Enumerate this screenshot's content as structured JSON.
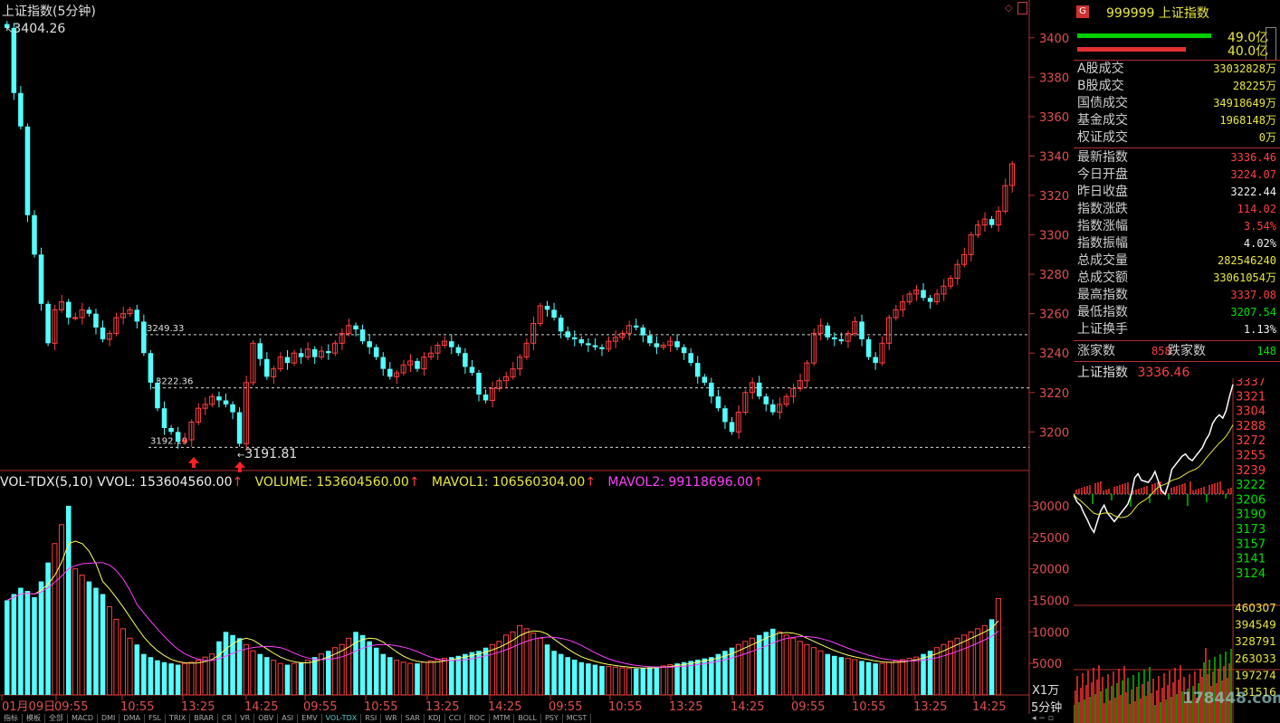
{
  "header": {
    "title": "上证指数(5分钟)",
    "right_icons": [
      "diamond-icon",
      "scroll-icon"
    ]
  },
  "price_panel": {
    "price_axis": [
      "3400",
      "3380",
      "3360",
      "3340",
      "3320",
      "3300",
      "3280",
      "3260",
      "3240",
      "3220",
      "3200"
    ],
    "reference_lines": [
      {
        "value": 3249.33,
        "label": "3249.33"
      },
      {
        "value": 3222.36,
        "label": "3222.36"
      },
      {
        "value": 3192.19,
        "label": "3192.19"
      }
    ],
    "annotations": {
      "high_label": "3404.26",
      "low_label": "3191.81"
    }
  },
  "volume_panel": {
    "indicator": "VOL-TDX(5,10)",
    "vvol": "VVOL: 153604560.00",
    "volume": "VOLUME: 153604560.00",
    "mavol1": "MAVOL1: 106560304.00",
    "mavol2": "MAVOL2: 99118696.00",
    "axis": [
      "30000",
      "25000",
      "20000",
      "15000",
      "10000",
      "5000"
    ],
    "unit": "X1万"
  },
  "time_axis": {
    "labels": [
      "01月09日",
      "09:55",
      "10:55",
      "13:25",
      "14:25",
      "09:55",
      "10:55",
      "13:25",
      "14:25",
      "09:55",
      "10:55",
      "13:25",
      "14:25",
      "09:55",
      "10:55",
      "13:25",
      "14:25"
    ],
    "period": "5分钟"
  },
  "tabs": [
    "指标",
    "模板",
    "全部",
    "MACD",
    "DMI",
    "DMA",
    "FSL",
    "TRIX",
    "BRAR",
    "CR",
    "VR",
    "OBV",
    "ASI",
    "EMV",
    "VOL-TDX",
    "RSI",
    "WR",
    "SAR",
    "KDJ",
    "CCI",
    "ROC",
    "MTM",
    "BOLL",
    "PSY",
    "MCST"
  ],
  "active_tab": "VOL-TDX",
  "right_panel": {
    "badge": "G",
    "code": "999999",
    "name": "上证指数",
    "bar_top": "49.0亿",
    "bar_bottom": "40.0亿",
    "volumes": [
      {
        "label": "A股成交",
        "value": "33032828万"
      },
      {
        "label": "B股成交",
        "value": "28225万"
      },
      {
        "label": "国债成交",
        "value": "34918649万"
      },
      {
        "label": "基金成交",
        "value": "1968148万"
      },
      {
        "label": "权证成交",
        "value": "0万"
      }
    ],
    "stats": [
      {
        "label": "最新指数",
        "value": "3336.46",
        "color": "red"
      },
      {
        "label": "今日开盘",
        "value": "3224.07",
        "color": "red"
      },
      {
        "label": "昨日收盘",
        "value": "3222.44",
        "color": "white"
      },
      {
        "label": "指数涨跌",
        "value": "114.02",
        "color": "red"
      },
      {
        "label": "指数涨幅",
        "value": "3.54%",
        "color": "red"
      },
      {
        "label": "指数振幅",
        "value": "4.02%",
        "color": "white"
      },
      {
        "label": "总成交量",
        "value": "282546240",
        "color": "yellow"
      },
      {
        "label": "总成交额",
        "value": "33061054万",
        "color": "yellow"
      },
      {
        "label": "最高指数",
        "value": "3337.08",
        "color": "red"
      },
      {
        "label": "最低指数",
        "value": "3207.54",
        "color": "green"
      },
      {
        "label": "上证换手",
        "value": "1.13%",
        "color": "white"
      }
    ],
    "up_label": "涨家数",
    "up_count": "858",
    "down_label": "跌家数",
    "down_count": "148",
    "mini_title": "上证指数",
    "mini_price": "3336.46",
    "mini_axis": [
      "3337",
      "3321",
      "3304",
      "3288",
      "3272",
      "3255",
      "3239",
      "3222",
      "3206",
      "3190",
      "3173",
      "3157",
      "3141",
      "3124"
    ],
    "mini_vol_axis": [
      "460307",
      "394549",
      "328791",
      "263033",
      "197274",
      "131516"
    ],
    "watermark": "178448.com"
  },
  "chart_data": {
    "type": "candlestick",
    "title": "上证指数(5分钟)",
    "interval": "5分钟",
    "ylim": [
      3185,
      3410
    ],
    "volume_ylim": [
      0,
      32000
    ],
    "reference": [
      3249.33,
      3222.36,
      3192.19
    ],
    "note_points": {
      "high": 3404.26,
      "low": 3191.81
    },
    "closes": [
      3405,
      3372,
      3355,
      3310,
      3290,
      3265,
      3245,
      3262,
      3266,
      3258,
      3258,
      3262,
      3260,
      3253,
      3247,
      3250,
      3258,
      3260,
      3262,
      3256,
      3240,
      3225,
      3212,
      3202,
      3200,
      3195,
      3196,
      3205,
      3212,
      3214,
      3218,
      3216,
      3214,
      3210,
      3194,
      3225,
      3245,
      3237,
      3228,
      3232,
      3238,
      3235,
      3240,
      3238,
      3242,
      3238,
      3241,
      3240,
      3245,
      3250,
      3254,
      3252,
      3246,
      3243,
      3238,
      3232,
      3228,
      3230,
      3234,
      3236,
      3232,
      3238,
      3240,
      3244,
      3246,
      3243,
      3240,
      3233,
      3230,
      3219,
      3216,
      3222,
      3226,
      3228,
      3232,
      3238,
      3245,
      3255,
      3264,
      3262,
      3258,
      3251,
      3248,
      3247,
      3245,
      3244,
      3243,
      3242,
      3246,
      3248,
      3250,
      3254,
      3253,
      3249,
      3245,
      3243,
      3244,
      3246,
      3243,
      3240,
      3235,
      3228,
      3225,
      3218,
      3212,
      3205,
      3200,
      3210,
      3220,
      3225,
      3218,
      3214,
      3210,
      3214,
      3218,
      3222,
      3226,
      3235,
      3250,
      3254,
      3248,
      3247,
      3246,
      3250,
      3256,
      3247,
      3238,
      3235,
      3245,
      3258,
      3262,
      3266,
      3270,
      3272,
      3268,
      3266,
      3270,
      3274,
      3278,
      3285,
      3290,
      3300,
      3305,
      3308,
      3305,
      3312,
      3325,
      3336
    ],
    "volumes": [
      15000,
      16000,
      17000,
      16500,
      15500,
      18000,
      21000,
      24000,
      27000,
      30000,
      20000,
      19000,
      18000,
      17000,
      16000,
      14000,
      12000,
      10500,
      9000,
      8000,
      6500,
      6000,
      5500,
      5200,
      5000,
      4800,
      5000,
      5200,
      5500,
      6000,
      6500,
      8500,
      10000,
      9500,
      9000,
      8000,
      7000,
      6500,
      6000,
      5500,
      5000,
      4800,
      5000,
      5200,
      5500,
      6000,
      6500,
      7000,
      7500,
      8000,
      9000,
      10000,
      9500,
      8500,
      7500,
      6500,
      6000,
      5500,
      5200,
      5000,
      5000,
      5200,
      5400,
      5600,
      5800,
      6000,
      6200,
      6500,
      6800,
      7000,
      7500,
      8000,
      8500,
      9500,
      10000,
      11000,
      10500,
      9800,
      9000,
      8000,
      7000,
      6500,
      6000,
      5600,
      5200,
      5000,
      4800,
      4600,
      4500,
      4400,
      4300,
      4200,
      4200,
      4300,
      4400,
      4500,
      4600,
      4800,
      5000,
      5200,
      5400,
      5600,
      5800,
      6000,
      6500,
      7000,
      7500,
      8000,
      8500,
      9000,
      9500,
      10000,
      10500,
      10000,
      9500,
      9000,
      8500,
      8000,
      7500,
      7000,
      6500,
      6200,
      6000,
      5800,
      5600,
      5400,
      5200,
      5000,
      5000,
      5200,
      5400,
      5600,
      5800,
      6000,
      6500,
      7000,
      7500,
      8000,
      8500,
      9000,
      9500,
      10000,
      10500,
      11000,
      12000,
      15300
    ]
  }
}
